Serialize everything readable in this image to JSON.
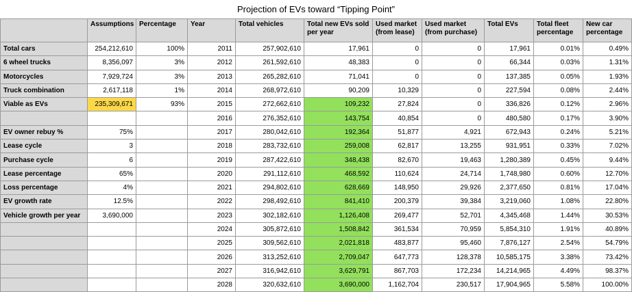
{
  "title": "Projection of EVs toward “Tipping Point”",
  "table": {
    "header": [
      null,
      "Assumptions",
      "Percentage",
      "Year",
      "Total vehicles",
      "Total new EVs sold per year",
      "Used market (from lease)",
      "Used market (from purchase)",
      "Total EVs",
      "Total fleet percentage",
      "New car percentage"
    ],
    "rows": [
      [
        "Total cars",
        "254,212,610",
        "100%",
        "2011",
        "257,902,610",
        "17,961",
        "0",
        "0",
        "17,961",
        "0.01%",
        "0.49%"
      ],
      [
        "6 wheel trucks",
        "8,356,097",
        "3%",
        "2012",
        "261,592,610",
        "48,383",
        "0",
        "0",
        "66,344",
        "0.03%",
        "1.31%"
      ],
      [
        "Motorcycles",
        "7,929,724",
        "3%",
        "2013",
        "265,282,610",
        "71,041",
        "0",
        "0",
        "137,385",
        "0.05%",
        "1.93%"
      ],
      [
        "Truck combination",
        "2,617,118",
        "1%",
        "2014",
        "268,972,610",
        "90,209",
        "10,329",
        "0",
        "227,594",
        "0.08%",
        "2.44%"
      ],
      [
        "Viable as EVs",
        "235,309,671",
        "93%",
        "2015",
        "272,662,610",
        "109,232",
        "27,824",
        "0",
        "336,826",
        "0.12%",
        "2.96%"
      ],
      [
        null,
        null,
        null,
        "2016",
        "276,352,610",
        "143,754",
        "40,854",
        "0",
        "480,580",
        "0.17%",
        "3.90%"
      ],
      [
        "EV owner rebuy %",
        "75%",
        null,
        "2017",
        "280,042,610",
        "192,364",
        "51,877",
        "4,921",
        "672,943",
        "0.24%",
        "5.21%"
      ],
      [
        "Lease cycle",
        "3",
        null,
        "2018",
        "283,732,610",
        "259,008",
        "62,817",
        "13,255",
        "931,951",
        "0.33%",
        "7.02%"
      ],
      [
        "Purchase cycle",
        "6",
        null,
        "2019",
        "287,422,610",
        "348,438",
        "82,670",
        "19,463",
        "1,280,389",
        "0.45%",
        "9.44%"
      ],
      [
        "Lease percentage",
        "65%",
        null,
        "2020",
        "291,112,610",
        "468,592",
        "110,624",
        "24,714",
        "1,748,980",
        "0.60%",
        "12.70%"
      ],
      [
        "Loss percentage",
        "4%",
        null,
        "2021",
        "294,802,610",
        "628,669",
        "148,950",
        "29,926",
        "2,377,650",
        "0.81%",
        "17.04%"
      ],
      [
        "EV growth rate",
        "12.5%",
        null,
        "2022",
        "298,492,610",
        "841,410",
        "200,379",
        "39,384",
        "3,219,060",
        "1.08%",
        "22.80%"
      ],
      [
        "Vehicle growth per year",
        "3,690,000",
        null,
        "2023",
        "302,182,610",
        "1,126,408",
        "269,477",
        "52,701",
        "4,345,468",
        "1.44%",
        "30.53%"
      ],
      [
        null,
        null,
        null,
        "2024",
        "305,872,610",
        "1,508,842",
        "361,534",
        "70,959",
        "5,854,310",
        "1.91%",
        "40.89%"
      ],
      [
        null,
        null,
        null,
        "2025",
        "309,562,610",
        "2,021,818",
        "483,877",
        "95,460",
        "7,876,127",
        "2.54%",
        "54.79%"
      ],
      [
        null,
        null,
        null,
        "2026",
        "313,252,610",
        "2,709,047",
        "647,773",
        "128,378",
        "10,585,175",
        "3.38%",
        "73.42%"
      ],
      [
        null,
        null,
        null,
        "2027",
        "316,942,610",
        "3,629,791",
        "867,703",
        "172,234",
        "14,214,965",
        "4.49%",
        "98.37%"
      ],
      [
        null,
        null,
        null,
        "2028",
        "320,632,610",
        "3,690,000",
        "1,162,704",
        "230,517",
        "17,904,965",
        "5.58%",
        "100.00%"
      ]
    ]
  }
}
